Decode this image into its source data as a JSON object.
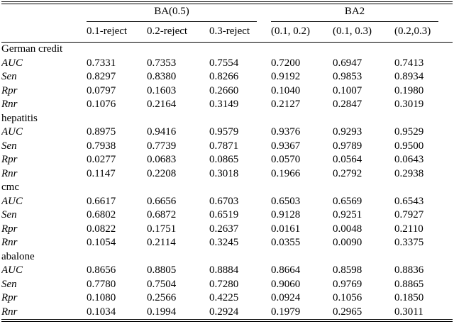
{
  "table": {
    "group_headers": [
      {
        "label": "BA(0.5)",
        "span": 3
      },
      {
        "label": "BA2",
        "span": 3
      }
    ],
    "col_headers": [
      "0.1-reject",
      "0.2-reject",
      "0.3-reject",
      "(0.1, 0.2)",
      "(0.1, 0.3)",
      "(0.2,0.3)"
    ],
    "sections": [
      {
        "name": "German credit",
        "rows": [
          {
            "metric": "AUC",
            "values": [
              "0.7331",
              "0.7353",
              "0.7554",
              "0.7200",
              "0.6947",
              "0.7413"
            ]
          },
          {
            "metric": "Sen",
            "values": [
              "0.8297",
              "0.8380",
              "0.8266",
              "0.9192",
              "0.9853",
              "0.8934"
            ]
          },
          {
            "metric": "Rpr",
            "values": [
              "0.0797",
              "0.1603",
              "0.2660",
              "0.1040",
              "0.1007",
              "0.1980"
            ]
          },
          {
            "metric": "Rnr",
            "values": [
              "0.1076",
              "0.2164",
              "0.3149",
              "0.2127",
              "0.2847",
              "0.3019"
            ]
          }
        ]
      },
      {
        "name": "hepatitis",
        "rows": [
          {
            "metric": "AUC",
            "values": [
              "0.8975",
              "0.9416",
              "0.9579",
              "0.9376",
              "0.9293",
              "0.9529"
            ]
          },
          {
            "metric": "Sen",
            "values": [
              "0.7938",
              "0.7739",
              "0.7871",
              "0.9367",
              "0.9789",
              "0.9500"
            ]
          },
          {
            "metric": "Rpr",
            "values": [
              "0.0277",
              "0.0683",
              "0.0865",
              "0.0570",
              "0.0564",
              "0.0643"
            ]
          },
          {
            "metric": "Rnr",
            "values": [
              "0.1147",
              "0.2208",
              "0.3018",
              "0.1966",
              "0.2792",
              "0.2938"
            ]
          }
        ]
      },
      {
        "name": "cmc",
        "rows": [
          {
            "metric": "AUC",
            "values": [
              "0.6617",
              "0.6656",
              "0.6703",
              "0.6503",
              "0.6569",
              "0.6543"
            ]
          },
          {
            "metric": "Sen",
            "values": [
              "0.6802",
              "0.6872",
              "0.6519",
              "0.9128",
              "0.9251",
              "0.7927"
            ]
          },
          {
            "metric": "Rpr",
            "values": [
              "0.0822",
              "0.1751",
              "0.2637",
              "0.0161",
              "0.0048",
              "0.2110"
            ]
          },
          {
            "metric": "Rnr",
            "values": [
              "0.1054",
              "0.2114",
              "0.3245",
              "0.0355",
              "0.0090",
              "0.3375"
            ]
          }
        ]
      },
      {
        "name": "abalone",
        "rows": [
          {
            "metric": "AUC",
            "values": [
              "0.8656",
              "0.8805",
              "0.8884",
              "0.8664",
              "0.8598",
              "0.8836"
            ]
          },
          {
            "metric": "Sen",
            "values": [
              "0.7780",
              "0.7504",
              "0.7280",
              "0.9060",
              "0.9769",
              "0.8865"
            ]
          },
          {
            "metric": "Rpr",
            "values": [
              "0.1080",
              "0.2566",
              "0.4225",
              "0.0924",
              "0.1056",
              "0.1850"
            ]
          },
          {
            "metric": "Rnr",
            "values": [
              "0.1034",
              "0.1994",
              "0.2924",
              "0.1979",
              "0.2965",
              "0.3011"
            ]
          }
        ]
      }
    ]
  }
}
